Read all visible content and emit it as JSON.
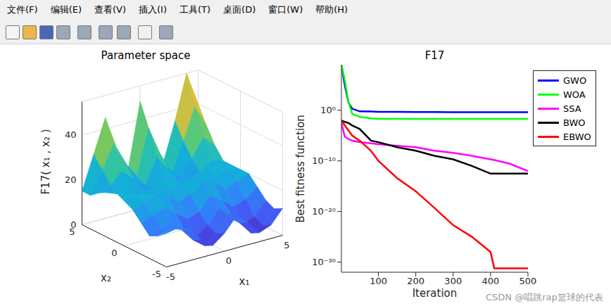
{
  "window": {
    "menu": [
      "文件(F)",
      "编辑(E)",
      "查看(V)",
      "插入(I)",
      "工具(T)",
      "桌面(D)",
      "窗口(W)",
      "帮助(H)"
    ],
    "watermark": "CSDN @唱跳rap篮球的代表"
  },
  "chart_data": [
    {
      "type": "surface",
      "title": "Parameter space",
      "x_label": "x₁",
      "y_label": "x₂",
      "z_label": "F17( x₁ , x₂ )",
      "x": [
        -5,
        -4,
        -3,
        -2,
        -1,
        0,
        1,
        2,
        3,
        4,
        5
      ],
      "y": [
        -5,
        -4,
        -3,
        -2,
        -1,
        0,
        1,
        2,
        3,
        4,
        5
      ],
      "z": [
        [
          15,
          16,
          14,
          8,
          4,
          8,
          14,
          10,
          4,
          6,
          12
        ],
        [
          12,
          14,
          12,
          6,
          2,
          6,
          12,
          8,
          2,
          4,
          10
        ],
        [
          10,
          12,
          14,
          8,
          4,
          8,
          14,
          10,
          4,
          6,
          12
        ],
        [
          14,
          16,
          18,
          14,
          10,
          12,
          18,
          14,
          10,
          12,
          16
        ],
        [
          18,
          20,
          22,
          20,
          16,
          18,
          22,
          20,
          16,
          18,
          20
        ],
        [
          20,
          22,
          20,
          18,
          20,
          22,
          20,
          18,
          20,
          22,
          20
        ],
        [
          22,
          20,
          18,
          20,
          22,
          20,
          18,
          20,
          22,
          20,
          20
        ],
        [
          20,
          18,
          18,
          17,
          15,
          20,
          17,
          16,
          18,
          22,
          20
        ],
        [
          18,
          20,
          25,
          20,
          16,
          27,
          20,
          15,
          22,
          30,
          25
        ],
        [
          15,
          25,
          35,
          25,
          18,
          38,
          25,
          15,
          28,
          42,
          32
        ],
        [
          15,
          30,
          45,
          30,
          20,
          48,
          30,
          18,
          35,
          55,
          40
        ]
      ],
      "xlim": [
        -5,
        5
      ],
      "ylim": [
        -5,
        5
      ],
      "zlim": [
        0,
        55
      ],
      "xticks": [
        -5,
        0,
        5
      ],
      "yticks": [
        -5,
        0,
        5
      ],
      "zticks": [
        0,
        20,
        40
      ]
    },
    {
      "type": "line",
      "title": "F17",
      "x_label": "Iteration",
      "y_label": "Best fitness function",
      "log": "y",
      "legend": "right",
      "line_style": "solid",
      "x": [
        1,
        10,
        20,
        30,
        50,
        80,
        100,
        150,
        200,
        250,
        300,
        350,
        400,
        410,
        450,
        500
      ],
      "series": [
        {
          "name": "GWO",
          "color": "#0000ff",
          "values": [
            1000000000.0,
            100000.0,
            30,
            2,
            0.6,
            0.55,
            0.5,
            0.5,
            0.45,
            0.45,
            0.42,
            0.42,
            0.4,
            0.4,
            0.4,
            0.4
          ]
        },
        {
          "name": "WOA",
          "color": "#00ff00",
          "values": [
            1000000000.0,
            1000000.0,
            40,
            0.2,
            0.05,
            0.025,
            0.02,
            0.02,
            0.02,
            0.02,
            0.02,
            0.02,
            0.02,
            0.02,
            0.02,
            0.02
          ]
        },
        {
          "name": "SSA",
          "color": "#ff00ff",
          "values": [
            0.003,
            6e-06,
            2e-06,
            1e-06,
            5e-07,
            3e-07,
            2e-07,
            1e-07,
            5e-08,
            1e-08,
            4e-09,
            1e-09,
            2e-10,
            1.5e-10,
            3e-11,
            1e-12
          ]
        },
        {
          "name": "BWO",
          "color": "#000000",
          "values": [
            0.01,
            0.005,
            0.003,
            0.001,
            0.0002,
            1e-06,
            5e-07,
            5e-08,
            1e-08,
            1e-09,
            2e-10,
            1e-11,
            3e-13,
            3e-13,
            3e-13,
            3e-13
          ]
        },
        {
          "name": "EBWO",
          "color": "#ff0000",
          "values": [
            0.01,
            0.001,
            0.0001,
            1e-05,
            1e-06,
            1e-08,
            1e-10,
            4e-14,
            1e-16,
            5e-20,
            2e-23,
            1e-25,
            1e-28,
            6e-32,
            6e-32,
            6e-32
          ]
        }
      ],
      "xlim": [
        1,
        500
      ],
      "xticks": [
        100,
        200,
        300,
        400,
        500
      ],
      "ylim": [
        1e-32,
        1000000000.0
      ],
      "yticks": [
        {
          "value": 1e-30,
          "label": "10⁻³⁰"
        },
        {
          "value": 1e-20,
          "label": "10⁻²⁰"
        },
        {
          "value": 1e-10,
          "label": "10⁻¹⁰"
        },
        {
          "value": 1,
          "label": "10⁰"
        }
      ]
    }
  ]
}
